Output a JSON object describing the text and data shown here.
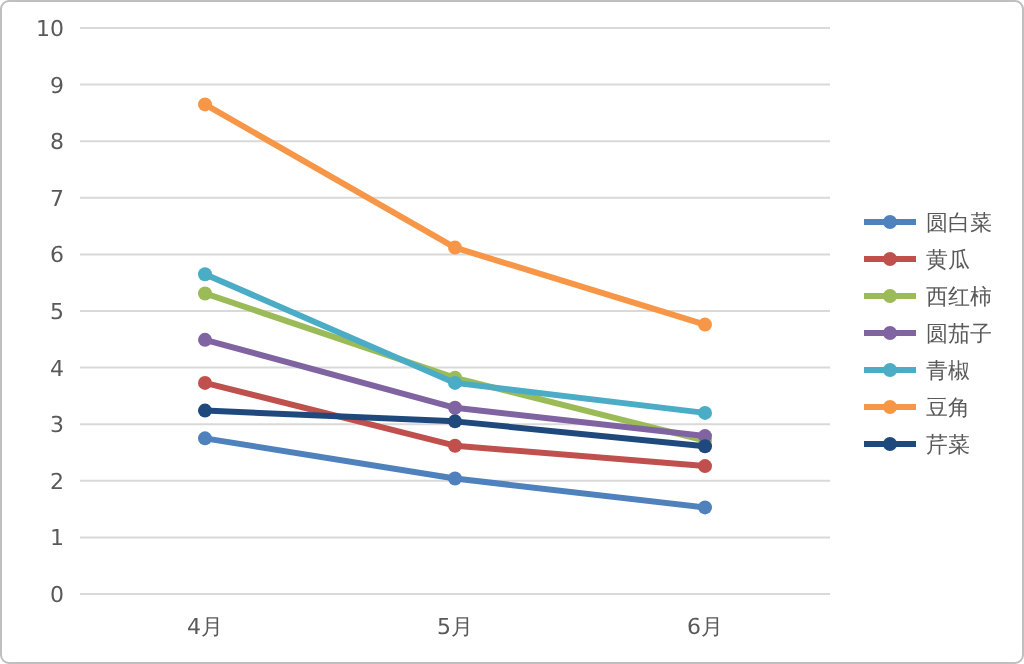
{
  "chart_data": {
    "type": "line",
    "categories": [
      "4月",
      "5月",
      "6月"
    ],
    "ylim": [
      0,
      10
    ],
    "yticks": [
      0,
      1,
      2,
      3,
      4,
      5,
      6,
      7,
      8,
      9,
      10
    ],
    "grid": "y",
    "legend": "right",
    "marker": "circle",
    "line_style": "solid",
    "series": [
      {
        "name": "圆白菜",
        "color": "#4f81bd",
        "values": [
          2.75,
          2.04,
          1.53
        ]
      },
      {
        "name": "黄瓜",
        "color": "#c0504d",
        "values": [
          3.73,
          2.62,
          2.26
        ]
      },
      {
        "name": "西红柿",
        "color": "#9bbb59",
        "values": [
          5.31,
          3.82,
          2.71
        ]
      },
      {
        "name": "圆茄子",
        "color": "#8064a2",
        "values": [
          4.49,
          3.29,
          2.79
        ]
      },
      {
        "name": "青椒",
        "color": "#4bacc6",
        "values": [
          5.65,
          3.73,
          3.2
        ]
      },
      {
        "name": "豆角",
        "color": "#f79646",
        "values": [
          8.65,
          6.12,
          4.76
        ]
      },
      {
        "name": "芹菜",
        "color": "#1f497d",
        "values": [
          3.24,
          3.05,
          2.61
        ]
      }
    ]
  }
}
